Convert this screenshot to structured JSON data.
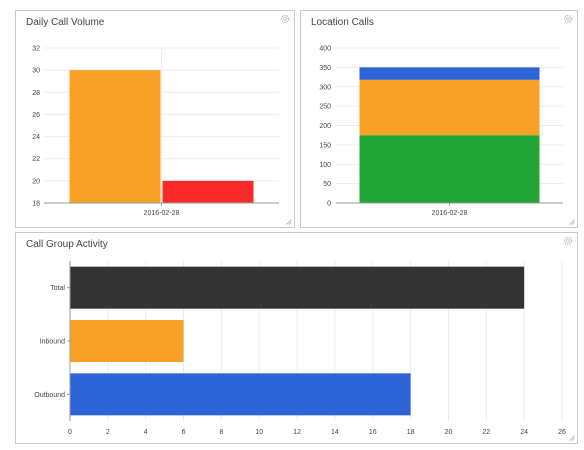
{
  "panels": {
    "daily": {
      "title": "Daily Call Volume"
    },
    "location": {
      "title": "Location Calls"
    },
    "group": {
      "title": "Call Group Activity"
    }
  },
  "icons": {
    "settings": "gear-icon",
    "resize": "resize-handle-icon"
  },
  "chart_data": [
    {
      "type": "bar",
      "title": "Daily Call Volume",
      "categories": [
        "2016-02-28"
      ],
      "series": [
        {
          "color": "#f8a126",
          "values": [
            30
          ]
        },
        {
          "color": "#fb2a2a",
          "values": [
            20
          ]
        }
      ],
      "ylim": [
        18,
        32
      ],
      "yticks": [
        18,
        20,
        22,
        24,
        26,
        28,
        30,
        32
      ],
      "grid": true
    },
    {
      "type": "bar",
      "stacked": true,
      "title": "Location Calls",
      "categories": [
        "2016-02-28"
      ],
      "series": [
        {
          "color": "#20a536",
          "values": [
            175
          ]
        },
        {
          "color": "#f8a126",
          "values": [
            143
          ]
        },
        {
          "color": "#2d64d8",
          "values": [
            32
          ]
        }
      ],
      "ylim": [
        0,
        400
      ],
      "yticks": [
        0,
        50,
        100,
        150,
        200,
        250,
        300,
        350,
        400
      ],
      "grid": true
    },
    {
      "type": "bar",
      "orientation": "horizontal",
      "title": "Call Group Activity",
      "categories": [
        "Total",
        "Inbound",
        "Outbound"
      ],
      "values": [
        24,
        6,
        18
      ],
      "colors": [
        "#333333",
        "#f8a126",
        "#2d64d8"
      ],
      "xlim": [
        0,
        26
      ],
      "xticks": [
        0,
        2,
        4,
        6,
        8,
        10,
        12,
        14,
        16,
        18,
        20,
        22,
        24,
        26
      ],
      "grid": true
    }
  ]
}
